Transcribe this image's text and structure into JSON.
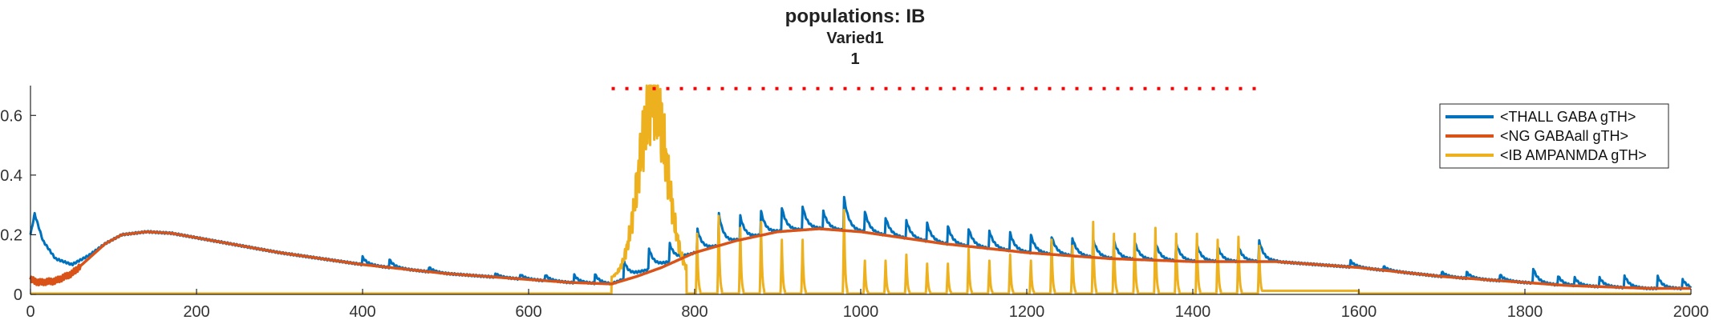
{
  "chart_data": {
    "type": "line",
    "title": "populations: IB",
    "subtitle_lines": [
      "Varied1",
      "1"
    ],
    "xlabel": "",
    "ylabel": "",
    "xlim": [
      0,
      2000
    ],
    "ylim": [
      0,
      0.7
    ],
    "x_ticks": [
      0,
      200,
      400,
      600,
      800,
      1000,
      1200,
      1400,
      1600,
      1800,
      2000
    ],
    "y_ticks": [
      0,
      0.2,
      0.4,
      0.6
    ],
    "y_tick_labels": [
      "0",
      "0.2",
      "0.4",
      "0.6"
    ],
    "grid": false,
    "legend_position": "top-right",
    "stimulus_marker": {
      "x_start": 700,
      "x_end": 1480,
      "y": 0.69,
      "color": "#ff0000"
    },
    "series": [
      {
        "name": "<THALL GABA gTH>",
        "color": "#0072bd",
        "baseline_points": [
          [
            0,
            0.2
          ],
          [
            5,
            0.27
          ],
          [
            15,
            0.18
          ],
          [
            30,
            0.12
          ],
          [
            50,
            0.1
          ],
          [
            70,
            0.13
          ],
          [
            90,
            0.17
          ],
          [
            110,
            0.2
          ],
          [
            140,
            0.21
          ],
          [
            170,
            0.205
          ],
          [
            200,
            0.19
          ],
          [
            250,
            0.165
          ],
          [
            300,
            0.14
          ],
          [
            350,
            0.12
          ],
          [
            400,
            0.1
          ],
          [
            450,
            0.085
          ],
          [
            500,
            0.07
          ],
          [
            550,
            0.06
          ],
          [
            600,
            0.05
          ],
          [
            650,
            0.04
          ],
          [
            700,
            0.035
          ],
          [
            730,
            0.07
          ],
          [
            760,
            0.1
          ],
          [
            800,
            0.14
          ],
          [
            850,
            0.18
          ],
          [
            900,
            0.21
          ],
          [
            950,
            0.22
          ],
          [
            1000,
            0.21
          ],
          [
            1050,
            0.19
          ],
          [
            1100,
            0.17
          ],
          [
            1150,
            0.155
          ],
          [
            1200,
            0.14
          ],
          [
            1250,
            0.13
          ],
          [
            1300,
            0.12
          ],
          [
            1350,
            0.115
          ],
          [
            1400,
            0.11
          ],
          [
            1450,
            0.11
          ],
          [
            1500,
            0.11
          ],
          [
            1550,
            0.1
          ],
          [
            1600,
            0.09
          ],
          [
            1650,
            0.075
          ],
          [
            1700,
            0.06
          ],
          [
            1750,
            0.05
          ],
          [
            1800,
            0.04
          ],
          [
            1850,
            0.03
          ],
          [
            1900,
            0.025
          ],
          [
            1950,
            0.02
          ],
          [
            2000,
            0.02
          ]
        ],
        "spikes": [
          {
            "x": 400,
            "height": 0.025
          },
          {
            "x": 432,
            "height": 0.028
          },
          {
            "x": 480,
            "height": 0.015
          },
          {
            "x": 560,
            "height": 0.012
          },
          {
            "x": 590,
            "height": 0.015
          },
          {
            "x": 620,
            "height": 0.02
          },
          {
            "x": 655,
            "height": 0.025
          },
          {
            "x": 680,
            "height": 0.03
          },
          {
            "x": 715,
            "height": 0.06
          },
          {
            "x": 745,
            "height": 0.07
          },
          {
            "x": 770,
            "height": 0.06
          },
          {
            "x": 803,
            "height": 0.08
          },
          {
            "x": 829,
            "height": 0.11
          },
          {
            "x": 855,
            "height": 0.08
          },
          {
            "x": 880,
            "height": 0.08
          },
          {
            "x": 905,
            "height": 0.08
          },
          {
            "x": 930,
            "height": 0.08
          },
          {
            "x": 955,
            "height": 0.06
          },
          {
            "x": 980,
            "height": 0.11
          },
          {
            "x": 1005,
            "height": 0.07
          },
          {
            "x": 1030,
            "height": 0.06
          },
          {
            "x": 1055,
            "height": 0.06
          },
          {
            "x": 1080,
            "height": 0.06
          },
          {
            "x": 1105,
            "height": 0.06
          },
          {
            "x": 1130,
            "height": 0.06
          },
          {
            "x": 1155,
            "height": 0.06
          },
          {
            "x": 1180,
            "height": 0.06
          },
          {
            "x": 1205,
            "height": 0.06
          },
          {
            "x": 1230,
            "height": 0.06
          },
          {
            "x": 1255,
            "height": 0.06
          },
          {
            "x": 1280,
            "height": 0.06
          },
          {
            "x": 1305,
            "height": 0.06
          },
          {
            "x": 1330,
            "height": 0.06
          },
          {
            "x": 1355,
            "height": 0.06
          },
          {
            "x": 1380,
            "height": 0.06
          },
          {
            "x": 1405,
            "height": 0.055
          },
          {
            "x": 1430,
            "height": 0.05
          },
          {
            "x": 1455,
            "height": 0.05
          },
          {
            "x": 1480,
            "height": 0.07
          },
          {
            "x": 1590,
            "height": 0.02
          },
          {
            "x": 1630,
            "height": 0.012
          },
          {
            "x": 1700,
            "height": 0.015
          },
          {
            "x": 1730,
            "height": 0.02
          },
          {
            "x": 1770,
            "height": 0.02
          },
          {
            "x": 1810,
            "height": 0.05
          },
          {
            "x": 1840,
            "height": 0.03
          },
          {
            "x": 1860,
            "height": 0.025
          },
          {
            "x": 1890,
            "height": 0.03
          },
          {
            "x": 1920,
            "height": 0.04
          },
          {
            "x": 1960,
            "height": 0.04
          },
          {
            "x": 1990,
            "height": 0.03
          }
        ]
      },
      {
        "name": "<NG GABAall gTH>",
        "color": "#d95319",
        "points": [
          [
            0,
            0.05
          ],
          [
            10,
            0.04
          ],
          [
            30,
            0.045
          ],
          [
            50,
            0.07
          ],
          [
            70,
            0.12
          ],
          [
            90,
            0.17
          ],
          [
            110,
            0.2
          ],
          [
            140,
            0.21
          ],
          [
            170,
            0.205
          ],
          [
            200,
            0.19
          ],
          [
            250,
            0.165
          ],
          [
            300,
            0.14
          ],
          [
            350,
            0.12
          ],
          [
            400,
            0.1
          ],
          [
            450,
            0.085
          ],
          [
            500,
            0.07
          ],
          [
            550,
            0.06
          ],
          [
            600,
            0.05
          ],
          [
            650,
            0.04
          ],
          [
            700,
            0.035
          ],
          [
            730,
            0.06
          ],
          [
            760,
            0.09
          ],
          [
            800,
            0.14
          ],
          [
            850,
            0.18
          ],
          [
            900,
            0.21
          ],
          [
            950,
            0.22
          ],
          [
            1000,
            0.21
          ],
          [
            1050,
            0.19
          ],
          [
            1100,
            0.17
          ],
          [
            1150,
            0.155
          ],
          [
            1200,
            0.14
          ],
          [
            1250,
            0.13
          ],
          [
            1300,
            0.12
          ],
          [
            1350,
            0.115
          ],
          [
            1400,
            0.11
          ],
          [
            1450,
            0.11
          ],
          [
            1500,
            0.11
          ],
          [
            1550,
            0.1
          ],
          [
            1600,
            0.09
          ],
          [
            1650,
            0.075
          ],
          [
            1700,
            0.06
          ],
          [
            1750,
            0.05
          ],
          [
            1800,
            0.04
          ],
          [
            1850,
            0.03
          ],
          [
            1900,
            0.025
          ],
          [
            1950,
            0.02
          ],
          [
            2000,
            0.02
          ]
        ]
      },
      {
        "name": "<IB AMPANMDA gTH>",
        "color": "#edb120",
        "baseline": 0.003,
        "burst": {
          "x_start": 700,
          "x_end": 790,
          "peak": 0.7
        },
        "spikes": [
          {
            "x": 803,
            "height": 0.2
          },
          {
            "x": 829,
            "height": 0.26
          },
          {
            "x": 855,
            "height": 0.22
          },
          {
            "x": 880,
            "height": 0.24
          },
          {
            "x": 905,
            "height": 0.18
          },
          {
            "x": 930,
            "height": 0.18
          },
          {
            "x": 980,
            "height": 0.28
          },
          {
            "x": 1005,
            "height": 0.11
          },
          {
            "x": 1030,
            "height": 0.11
          },
          {
            "x": 1055,
            "height": 0.13
          },
          {
            "x": 1080,
            "height": 0.1
          },
          {
            "x": 1105,
            "height": 0.1
          },
          {
            "x": 1130,
            "height": 0.15
          },
          {
            "x": 1155,
            "height": 0.11
          },
          {
            "x": 1180,
            "height": 0.13
          },
          {
            "x": 1205,
            "height": 0.11
          },
          {
            "x": 1230,
            "height": 0.18
          },
          {
            "x": 1255,
            "height": 0.16
          },
          {
            "x": 1280,
            "height": 0.24
          },
          {
            "x": 1305,
            "height": 0.2
          },
          {
            "x": 1330,
            "height": 0.2
          },
          {
            "x": 1355,
            "height": 0.22
          },
          {
            "x": 1380,
            "height": 0.2
          },
          {
            "x": 1405,
            "height": 0.2
          },
          {
            "x": 1430,
            "height": 0.18
          },
          {
            "x": 1455,
            "height": 0.19
          },
          {
            "x": 1480,
            "height": 0.16
          }
        ]
      }
    ]
  }
}
